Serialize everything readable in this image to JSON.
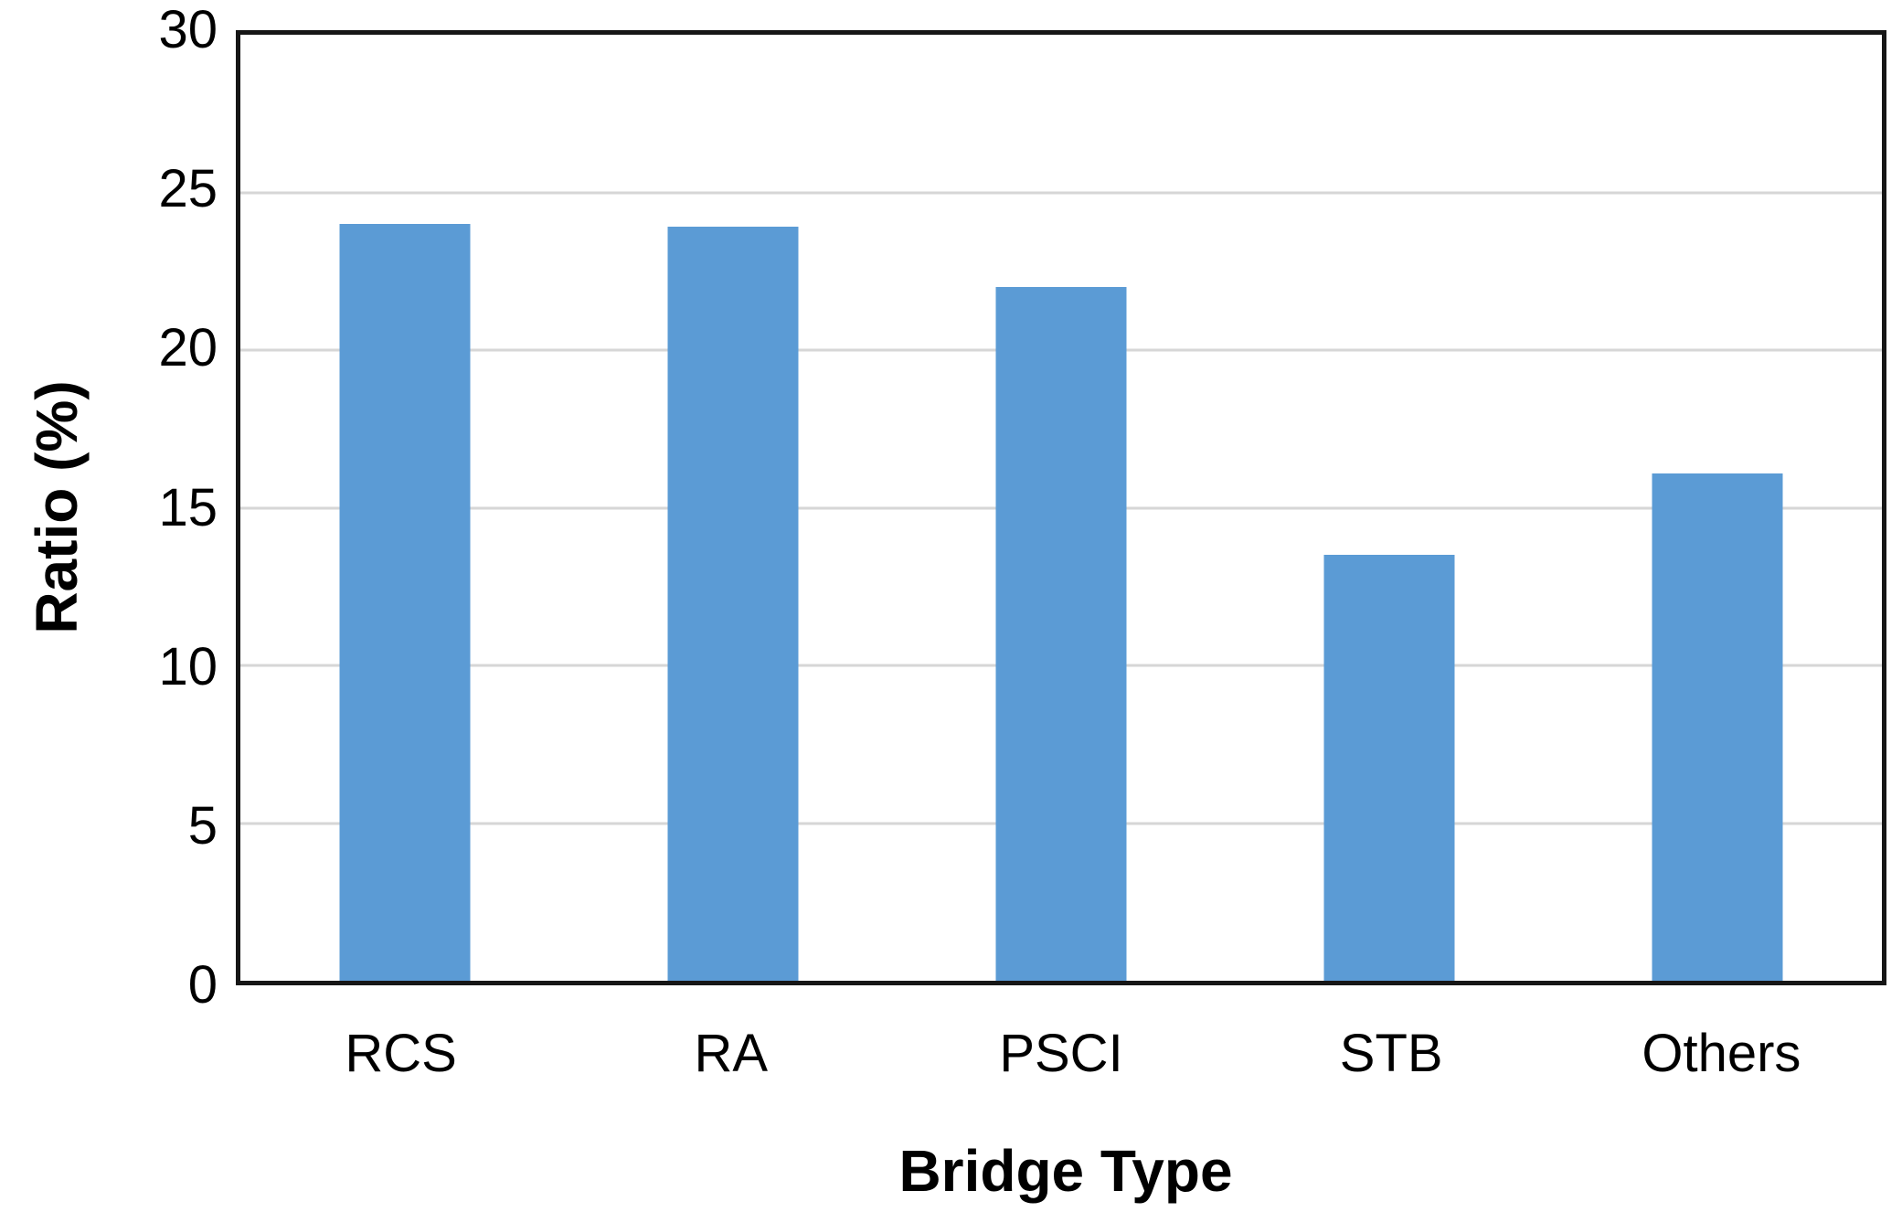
{
  "chart_data": {
    "type": "bar",
    "categories": [
      "RCS",
      "RA",
      "PSCI",
      "STB",
      "Others"
    ],
    "values": [
      24.0,
      23.9,
      22.0,
      13.5,
      16.1
    ],
    "title": "",
    "xlabel": "Bridge Type",
    "ylabel": "Ratio (%)",
    "ylim": [
      0,
      30
    ],
    "yticks": [
      0,
      5,
      10,
      15,
      20,
      25,
      30
    ],
    "grid": "horizontal-only",
    "legend": "none",
    "colors": {
      "bar_fill": "#5B9BD5",
      "gridline": "#D6D6D6",
      "axis_frame": "#161616",
      "text": "#000000",
      "background": "#FFFFFF"
    }
  }
}
